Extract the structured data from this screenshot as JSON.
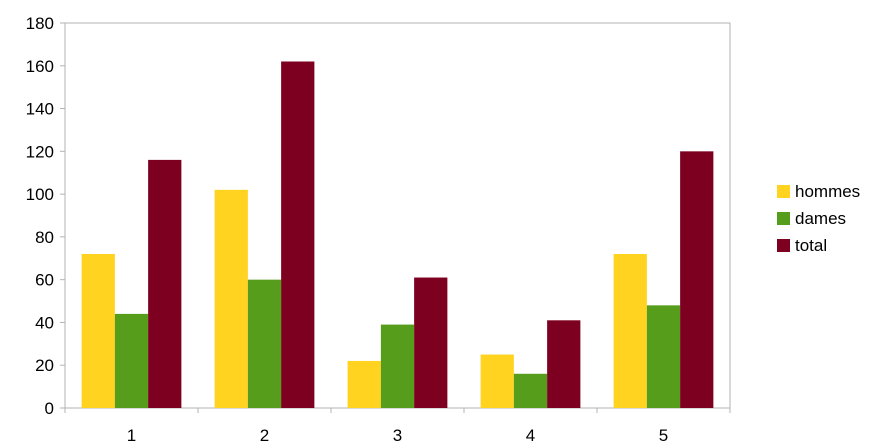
{
  "chart_data": {
    "type": "bar",
    "categories": [
      "1",
      "2",
      "3",
      "4",
      "5"
    ],
    "series": [
      {
        "name": "hommes",
        "values": [
          72,
          102,
          22,
          25,
          72
        ],
        "color": "#ffd320"
      },
      {
        "name": "dames",
        "values": [
          44,
          60,
          39,
          16,
          48
        ],
        "color": "#579d1c"
      },
      {
        "name": "total",
        "values": [
          116,
          162,
          61,
          41,
          120
        ],
        "color": "#7e0021"
      }
    ],
    "ylim": [
      0,
      180
    ],
    "yticks": [
      0,
      20,
      40,
      60,
      80,
      100,
      120,
      140,
      160,
      180
    ],
    "grid": false,
    "legend_position": "right"
  }
}
